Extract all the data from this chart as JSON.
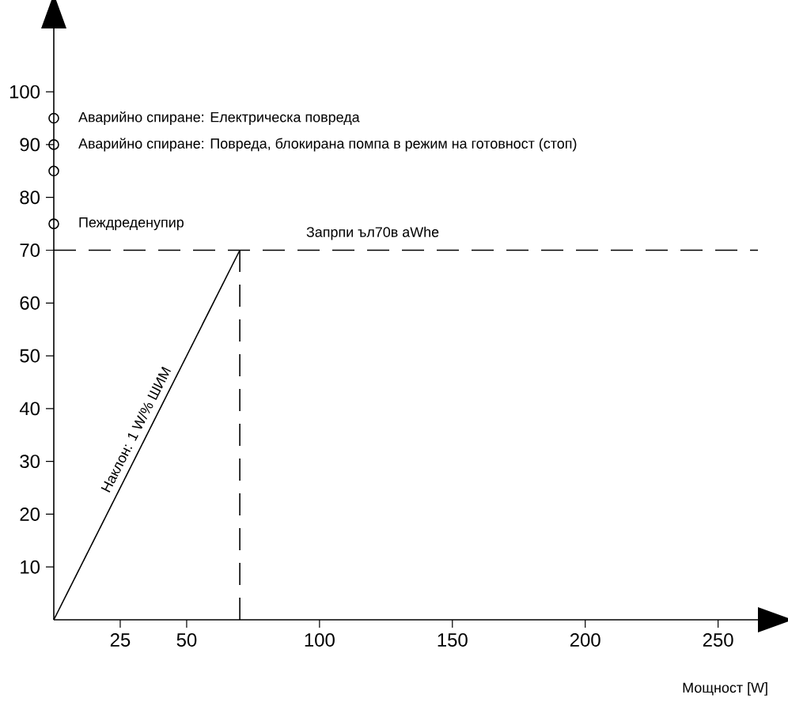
{
  "chart_data": {
    "type": "line",
    "xlabel": "Мощност [W]",
    "series": [
      {
        "x": [
          0,
          70
        ],
        "values": [
          0,
          70
        ],
        "color": "#000000",
        "line_style": "solid"
      },
      {
        "x": [
          70,
          70
        ],
        "values": [
          0,
          70
        ],
        "color": "#000000",
        "line_style": "dashed"
      },
      {
        "x": [
          0,
          265
        ],
        "values": [
          70,
          70
        ],
        "color": "#000000",
        "line_style": "dashed"
      },
      {
        "type": "scatter",
        "x": [
          0,
          0,
          0,
          0
        ],
        "values": [
          75,
          85,
          90,
          95
        ],
        "color": "#000000",
        "marker": "circle"
      }
    ],
    "xlim": [
      0,
      265
    ],
    "ylim": [
      0,
      112
    ],
    "xticks": [
      25,
      50,
      100,
      150,
      200,
      250
    ],
    "yticks": [
      10,
      20,
      30,
      40,
      50,
      60,
      70,
      80,
      90,
      100
    ],
    "annotations": [
      {
        "text": "Аварийно спиране: Електрическа повреда",
        "x": 0,
        "y": 95
      },
      {
        "text": "Аварийно спиране: Повреда, блокирана помпа в режим на готовност (стоп)",
        "x": 0,
        "y": 90
      },
      {
        "text": "Пеждреденупир",
        "x": 0,
        "y": 75
      },
      {
        "text": "Запрпи ъл70в aWhe",
        "x": 120,
        "y": 70
      },
      {
        "text": "Наклон: 1 W/% ШИМ",
        "x": 35,
        "y": 35
      }
    ]
  }
}
